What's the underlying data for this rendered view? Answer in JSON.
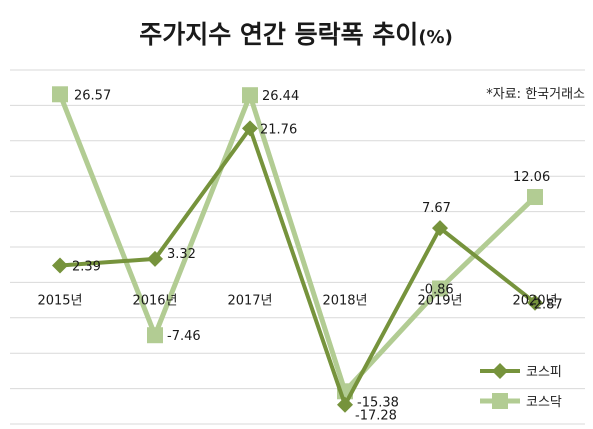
{
  "chart_data": {
    "type": "line",
    "title": "주가지수 연간 등락폭 추이",
    "title_unit": "(%)",
    "source_note": "*자료: 한국거래소",
    "categories": [
      "2015년",
      "2016년",
      "2017년",
      "2018년",
      "2019년",
      "2020년"
    ],
    "series": [
      {
        "name": "코스피",
        "values": [
          2.39,
          3.32,
          21.76,
          -17.28,
          7.67,
          -2.87
        ],
        "color": "#76933c",
        "marker": "diamond"
      },
      {
        "name": "코스닥",
        "values": [
          26.57,
          -7.46,
          26.44,
          -15.38,
          -0.86,
          12.06
        ],
        "color": "#b2cc93",
        "marker": "square"
      }
    ],
    "ylim": [
      -20,
      30
    ],
    "grid": true,
    "legend_position": "bottom-right"
  }
}
